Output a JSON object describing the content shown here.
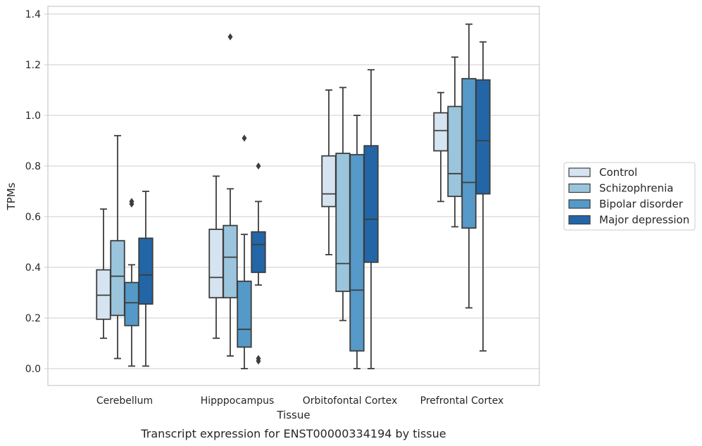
{
  "chart_data": {
    "type": "box",
    "title": "",
    "caption": "Transcript expression for ENST00000334194 by tissue",
    "xlabel": "Tissue",
    "ylabel": "TPMs",
    "ylim": [
      -0.065,
      1.44
    ],
    "yticks": [
      "0.0",
      "0.2",
      "0.4",
      "0.6",
      "0.8",
      "1.0",
      "1.2",
      "1.4"
    ],
    "ytick_values": [
      0,
      0.2,
      0.4,
      0.6,
      0.8,
      1.0,
      1.2,
      1.4
    ],
    "grid": "horizontal",
    "legend_position": "right",
    "categories": [
      "Cerebellum",
      "Hipppocampus",
      "Orbitofontal Cortex",
      "Prefrontal Cortex"
    ],
    "series": [
      {
        "name": "Control",
        "color": "#d6e4f1",
        "boxes": [
          {
            "whislo": 0.12,
            "q1": 0.195,
            "med": 0.29,
            "q3": 0.39,
            "whishi": 0.63,
            "fliers": []
          },
          {
            "whislo": 0.12,
            "q1": 0.28,
            "med": 0.36,
            "q3": 0.55,
            "whishi": 0.76,
            "fliers": []
          },
          {
            "whislo": 0.45,
            "q1": 0.64,
            "med": 0.69,
            "q3": 0.84,
            "whishi": 1.1,
            "fliers": []
          },
          {
            "whislo": 0.66,
            "q1": 0.86,
            "med": 0.94,
            "q3": 1.01,
            "whishi": 1.09,
            "fliers": []
          }
        ]
      },
      {
        "name": "Schizophrenia",
        "color": "#9ac5dd",
        "boxes": [
          {
            "whislo": 0.04,
            "q1": 0.21,
            "med": 0.365,
            "q3": 0.505,
            "whishi": 0.92,
            "fliers": []
          },
          {
            "whislo": 0.05,
            "q1": 0.28,
            "med": 0.44,
            "q3": 0.565,
            "whishi": 0.71,
            "fliers": [
              1.31
            ]
          },
          {
            "whislo": 0.19,
            "q1": 0.305,
            "med": 0.415,
            "q3": 0.85,
            "whishi": 1.11,
            "fliers": []
          },
          {
            "whislo": 0.56,
            "q1": 0.68,
            "med": 0.77,
            "q3": 1.035,
            "whishi": 1.23,
            "fliers": []
          }
        ]
      },
      {
        "name": "Bipolar disorder",
        "color": "#5599c8",
        "boxes": [
          {
            "whislo": 0.01,
            "q1": 0.17,
            "med": 0.26,
            "q3": 0.34,
            "whishi": 0.41,
            "fliers": [
              0.65,
              0.66
            ]
          },
          {
            "whislo": 0.0,
            "q1": 0.085,
            "med": 0.155,
            "q3": 0.345,
            "whishi": 0.53,
            "fliers": [
              0.91
            ]
          },
          {
            "whislo": 0.0,
            "q1": 0.07,
            "med": 0.31,
            "q3": 0.845,
            "whishi": 1.0,
            "fliers": []
          },
          {
            "whislo": 0.24,
            "q1": 0.555,
            "med": 0.735,
            "q3": 1.145,
            "whishi": 1.36,
            "fliers": []
          }
        ]
      },
      {
        "name": "Major depression",
        "color": "#2266a8",
        "boxes": [
          {
            "whislo": 0.01,
            "q1": 0.255,
            "med": 0.37,
            "q3": 0.515,
            "whishi": 0.7,
            "fliers": []
          },
          {
            "whislo": 0.33,
            "q1": 0.38,
            "med": 0.49,
            "q3": 0.54,
            "whishi": 0.66,
            "fliers": [
              0.8,
              0.03,
              0.04
            ]
          },
          {
            "whislo": 0.0,
            "q1": 0.42,
            "med": 0.59,
            "q3": 0.88,
            "whishi": 1.18,
            "fliers": []
          },
          {
            "whislo": 0.07,
            "q1": 0.69,
            "med": 0.9,
            "q3": 1.14,
            "whishi": 1.29,
            "fliers": []
          }
        ]
      }
    ]
  }
}
